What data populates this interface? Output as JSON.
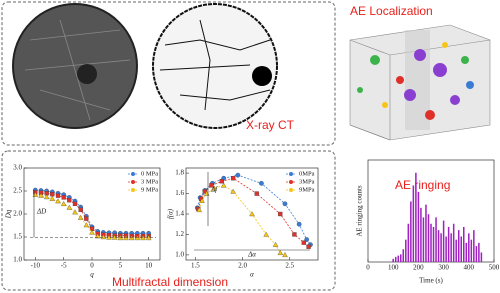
{
  "labels": {
    "ct": "X-ray CT",
    "localization": "AE Localization",
    "multifractal": "Multifractal dimension"
  },
  "chart_data": [
    {
      "type": "line",
      "xlabel": "q",
      "ylabel": "Dq",
      "annotation": "ΔD",
      "x": [
        -10,
        -9,
        -8,
        -7,
        -6,
        -5,
        -4,
        -3,
        -2,
        -1,
        0,
        1,
        2,
        3,
        4,
        5,
        6,
        7,
        8,
        9,
        10
      ],
      "xlim": [
        -12,
        12
      ],
      "xticks": [
        -10,
        -5,
        0,
        5,
        10
      ],
      "ylim": [
        1,
        3
      ],
      "yticks": [
        {
          "value": 1,
          "label": "1.0"
        },
        {
          "value": 1.5,
          "label": "1.5"
        },
        {
          "value": 2,
          "label": "2.0"
        },
        {
          "value": 2.5,
          "label": "2.5"
        },
        {
          "value": 3,
          "label": "3.0"
        }
      ],
      "series": [
        {
          "name": "0 MPa",
          "color": "#3a7bd5",
          "marker": "circle",
          "values": [
            2.52,
            2.51,
            2.5,
            2.48,
            2.45,
            2.42,
            2.36,
            2.28,
            2.15,
            1.95,
            1.72,
            1.62,
            1.6,
            1.59,
            1.59,
            1.58,
            1.58,
            1.58,
            1.58,
            1.58,
            1.58
          ]
        },
        {
          "name": "3 MPa",
          "color": "#e0302a",
          "marker": "square",
          "values": [
            2.47,
            2.46,
            2.45,
            2.43,
            2.4,
            2.36,
            2.3,
            2.22,
            2.09,
            1.9,
            1.68,
            1.57,
            1.55,
            1.54,
            1.53,
            1.53,
            1.53,
            1.52,
            1.52,
            1.52,
            1.52
          ]
        },
        {
          "name": "9 MPa",
          "color": "#f5c518",
          "marker": "triangle",
          "values": [
            2.42,
            2.4,
            2.37,
            2.33,
            2.28,
            2.22,
            2.14,
            2.04,
            1.92,
            1.76,
            1.6,
            1.52,
            1.5,
            1.49,
            1.49,
            1.48,
            1.48,
            1.48,
            1.48,
            1.48,
            1.48
          ]
        }
      ]
    },
    {
      "type": "line",
      "xlabel": "α",
      "ylabel": "f(α)",
      "annotation": "Δα",
      "annotation2": "Δf",
      "xlim": [
        1.4,
        2.8
      ],
      "xticks": [
        1.5,
        {
          "value": 2,
          "label": "2.0"
        },
        2.5
      ],
      "ylim": [
        0.95,
        1.85
      ],
      "yticks": [
        {
          "value": 1,
          "label": "1.0"
        },
        1.2,
        1.4,
        1.6,
        1.8
      ],
      "series": [
        {
          "name": "0MPa",
          "color": "#3a7bd5",
          "marker": "circle",
          "x": [
            1.52,
            1.55,
            1.6,
            1.68,
            1.8,
            1.95,
            2.2,
            2.45,
            2.6,
            2.68,
            2.72
          ],
          "values": [
            1.46,
            1.56,
            1.63,
            1.7,
            1.75,
            1.78,
            1.7,
            1.5,
            1.3,
            1.15,
            1.1
          ]
        },
        {
          "name": "3MPa",
          "color": "#e0302a",
          "marker": "square",
          "x": [
            1.53,
            1.56,
            1.6,
            1.67,
            1.78,
            1.9,
            2.15,
            2.4,
            2.55,
            2.65,
            2.7
          ],
          "values": [
            1.45,
            1.55,
            1.62,
            1.68,
            1.72,
            1.75,
            1.6,
            1.4,
            1.2,
            1.12,
            1.08
          ]
        },
        {
          "name": "9MPa",
          "color": "#f5c518",
          "marker": "triangle",
          "x": [
            1.54,
            1.57,
            1.62,
            1.7,
            1.8,
            1.9,
            2.1,
            2.25,
            2.35,
            2.4,
            2.45
          ],
          "values": [
            1.44,
            1.53,
            1.6,
            1.65,
            1.68,
            1.62,
            1.4,
            1.2,
            1.1,
            1.02,
            1.0
          ]
        }
      ]
    },
    {
      "type": "bar",
      "title": "AE ringing",
      "xlabel": "Time (s)",
      "ylabel": "AE ringing counts",
      "color": "#a020c0",
      "x": [
        100,
        110,
        120,
        130,
        140,
        150,
        160,
        170,
        180,
        190,
        200,
        210,
        220,
        230,
        240,
        250,
        260,
        270,
        280,
        290,
        300,
        310,
        320,
        330,
        340,
        350,
        360,
        370,
        380,
        390,
        400,
        410,
        420,
        430,
        440,
        450
      ],
      "values": [
        5,
        8,
        10,
        12,
        20,
        35,
        60,
        95,
        120,
        140,
        110,
        85,
        70,
        90,
        75,
        60,
        55,
        70,
        50,
        45,
        65,
        40,
        55,
        45,
        60,
        35,
        50,
        40,
        55,
        30,
        45,
        35,
        50,
        25,
        30,
        15
      ],
      "xlim": [
        0,
        500
      ],
      "xticks": [
        0,
        100,
        200,
        300,
        400,
        500
      ],
      "ylim": [
        0,
        160
      ]
    }
  ]
}
